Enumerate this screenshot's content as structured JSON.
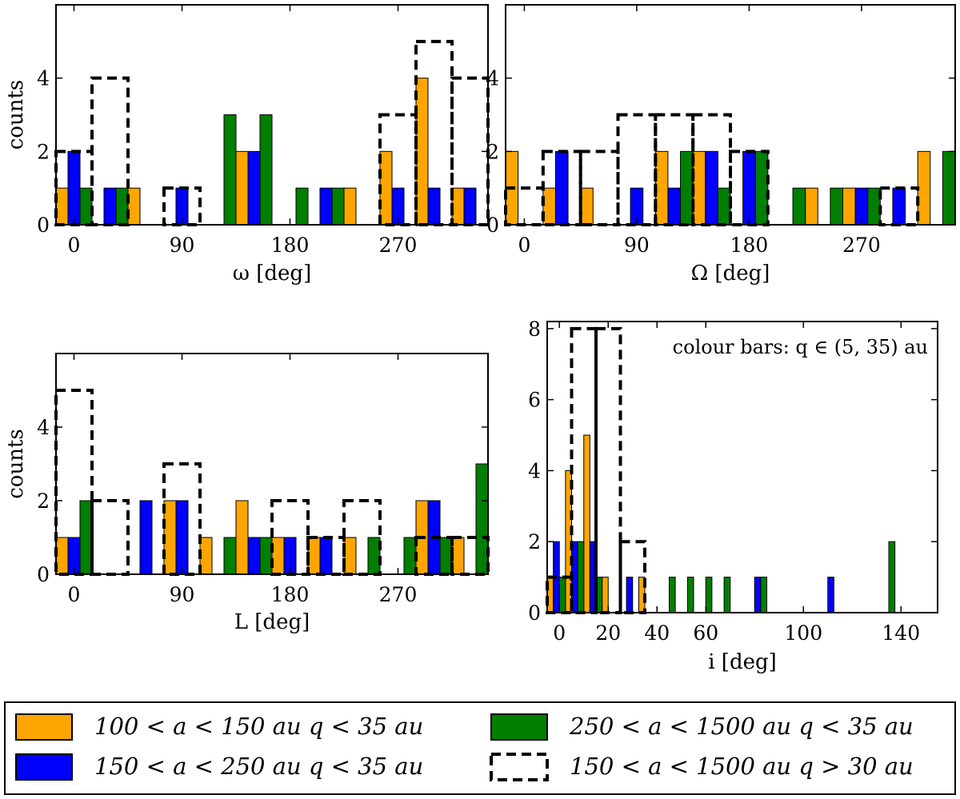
{
  "colors": {
    "orange": "#FFA500",
    "blue": "#0000FF",
    "green": "#007F00",
    "dashed": "#000000"
  },
  "chart_data": [
    {
      "id": "omega",
      "type": "bar",
      "xlabel": "ω [deg]",
      "ylabel": "counts",
      "xlim": [
        -15,
        345
      ],
      "ylim": [
        0,
        6
      ],
      "xticks": [
        0,
        90,
        180,
        270
      ],
      "xtick_labels": [
        "0",
        "90",
        "180",
        "270"
      ],
      "yticks": [
        0,
        2,
        4
      ],
      "ytick_labels": [
        "0",
        "2",
        "4"
      ],
      "bin_width": 30,
      "bin_starts": [
        -15,
        15,
        45,
        75,
        105,
        135,
        165,
        195,
        225,
        255,
        285,
        315
      ],
      "series": [
        {
          "name": "100 < a < 150 au   q < 35 au",
          "color": "orange",
          "values": [
            1,
            0,
            1,
            0,
            0,
            2,
            0,
            0,
            1,
            2,
            4,
            1
          ]
        },
        {
          "name": "150 < a < 250 au   q < 35 au",
          "color": "blue",
          "values": [
            2,
            1,
            0,
            1,
            0,
            2,
            0,
            1,
            0,
            1,
            1,
            1
          ]
        },
        {
          "name": "250 < a < 1500 au   q < 35 au",
          "color": "green",
          "values": [
            1,
            1,
            0,
            0,
            3,
            3,
            1,
            1,
            0,
            0,
            0,
            0
          ]
        }
      ],
      "dashed": {
        "name": "150 < a < 1500 au   q > 30 au",
        "bin_starts": [
          -15,
          15,
          45,
          75,
          105,
          135,
          165,
          195,
          225,
          255,
          285,
          315
        ],
        "values": [
          2,
          4,
          0,
          1,
          0,
          0,
          0,
          0,
          0,
          3,
          5,
          4
        ]
      }
    },
    {
      "id": "Omega",
      "type": "bar",
      "xlabel": "Ω [deg]",
      "ylabel": "",
      "xlim": [
        -15,
        345
      ],
      "ylim": [
        0,
        6
      ],
      "xticks": [
        0,
        90,
        180,
        270
      ],
      "xtick_labels": [
        "0",
        "90",
        "180",
        "270"
      ],
      "yticks": [
        0,
        2,
        4
      ],
      "ytick_labels": [
        "0",
        "2",
        "4"
      ],
      "bin_width": 30,
      "bin_starts": [
        -15,
        15,
        45,
        75,
        105,
        135,
        165,
        195,
        225,
        255,
        285,
        315
      ],
      "series": [
        {
          "name": "100 < a < 150 au   q < 35 au",
          "color": "orange",
          "values": [
            2,
            1,
            1,
            0,
            2,
            2,
            0,
            0,
            1,
            1,
            0,
            2
          ]
        },
        {
          "name": "150 < a < 250 au   q < 35 au",
          "color": "blue",
          "values": [
            0,
            2,
            0,
            1,
            1,
            2,
            2,
            0,
            0,
            1,
            1,
            0
          ]
        },
        {
          "name": "250 < a < 1500 au   q < 35 au",
          "color": "green",
          "values": [
            0,
            0,
            0,
            0,
            2,
            1,
            2,
            1,
            1,
            1,
            0,
            2
          ]
        }
      ],
      "dashed": {
        "name": "150 < a < 1500 au   q > 30 au",
        "bin_starts": [
          -15,
          15,
          45,
          75,
          105,
          135,
          165,
          195,
          225,
          255,
          285,
          315
        ],
        "values": [
          1,
          2,
          2,
          3,
          3,
          3,
          2,
          0,
          0,
          0,
          1,
          0
        ]
      }
    },
    {
      "id": "L",
      "type": "bar",
      "xlabel": "L [deg]",
      "ylabel": "counts",
      "xlim": [
        -15,
        345
      ],
      "ylim": [
        0,
        6
      ],
      "xticks": [
        0,
        90,
        180,
        270
      ],
      "xtick_labels": [
        "0",
        "90",
        "180",
        "270"
      ],
      "yticks": [
        0,
        2,
        4
      ],
      "ytick_labels": [
        "0",
        "2",
        "4"
      ],
      "bin_width": 30,
      "bin_starts": [
        -15,
        15,
        45,
        75,
        105,
        135,
        165,
        195,
        225,
        255,
        285,
        315
      ],
      "series": [
        {
          "name": "100 < a < 150 au   q < 35 au",
          "color": "orange",
          "values": [
            1,
            0,
            0,
            2,
            1,
            2,
            1,
            1,
            1,
            0,
            2,
            1
          ]
        },
        {
          "name": "150 < a < 250 au   q < 35 au",
          "color": "blue",
          "values": [
            1,
            0,
            2,
            2,
            0,
            1,
            1,
            1,
            0,
            0,
            2,
            0
          ]
        },
        {
          "name": "250 < a < 1500 au   q < 35 au",
          "color": "green",
          "values": [
            2,
            0,
            0,
            0,
            1,
            1,
            0,
            0,
            1,
            1,
            1,
            3
          ]
        }
      ],
      "dashed": {
        "name": "150 < a < 1500 au   q > 30 au",
        "bin_starts": [
          -15,
          15,
          45,
          75,
          105,
          135,
          165,
          195,
          225,
          255,
          285,
          315
        ],
        "values": [
          5,
          2,
          0,
          3,
          0,
          0,
          2,
          1,
          2,
          0,
          1,
          1
        ]
      }
    },
    {
      "id": "inclination",
      "type": "bar",
      "xlabel": "i [deg]",
      "ylabel": "",
      "annotation": "colour bars: q ∈ (5, 35) au",
      "xlim": [
        -5,
        155
      ],
      "ylim": [
        0,
        8.2
      ],
      "xticks": [
        0,
        20,
        40,
        60,
        100,
        140
      ],
      "xtick_labels": [
        "0",
        "20",
        "40",
        "60",
        "100",
        "140"
      ],
      "yticks": [
        0,
        2,
        4,
        6,
        8
      ],
      "ytick_labels": [
        "0",
        "2",
        "4",
        "6",
        "8"
      ],
      "bin_width": 7.5,
      "bin_starts": [
        -5,
        2.5,
        10,
        17.5,
        25,
        32.5,
        40,
        47.5,
        55,
        62.5,
        70,
        77.5,
        85,
        92.5,
        100,
        107.5,
        115,
        122.5,
        130,
        137.5,
        145
      ],
      "series": [
        {
          "name": "100 < a < 150 au   q < 35 au",
          "color": "orange",
          "values": [
            1,
            4,
            5,
            1,
            0,
            1,
            0,
            0,
            0,
            0,
            0,
            0,
            0,
            0,
            0,
            0,
            0,
            0,
            0,
            0,
            0
          ]
        },
        {
          "name": "150 < a < 250 au   q < 35 au",
          "color": "blue",
          "values": [
            2,
            2,
            2,
            0,
            1,
            0,
            0,
            0,
            0,
            0,
            0,
            1,
            0,
            0,
            0,
            1,
            0,
            0,
            0,
            0,
            0
          ]
        },
        {
          "name": "250 < a < 1500 au   q < 35 au",
          "color": "green",
          "values": [
            1,
            2,
            1,
            0,
            0,
            0,
            1,
            1,
            1,
            1,
            0,
            1,
            0,
            0,
            0,
            0,
            0,
            0,
            2,
            0,
            0
          ]
        }
      ],
      "dashed": {
        "name": "150 < a < 1500 au   q > 30 au",
        "bin_starts": [
          -5,
          5,
          15,
          25
        ],
        "bin_width": 10,
        "values": [
          1,
          8,
          8,
          2
        ]
      }
    }
  ],
  "legend": {
    "items": [
      {
        "key": "orange",
        "label": "100 < a < 150 au    q < 35 au"
      },
      {
        "key": "blue",
        "label": "150 < a < 250 au    q < 35 au"
      },
      {
        "key": "green",
        "label": "250 < a < 1500 au    q < 35 au"
      },
      {
        "key": "dashed",
        "label": "150 < a < 1500 au    q > 30 au"
      }
    ]
  }
}
